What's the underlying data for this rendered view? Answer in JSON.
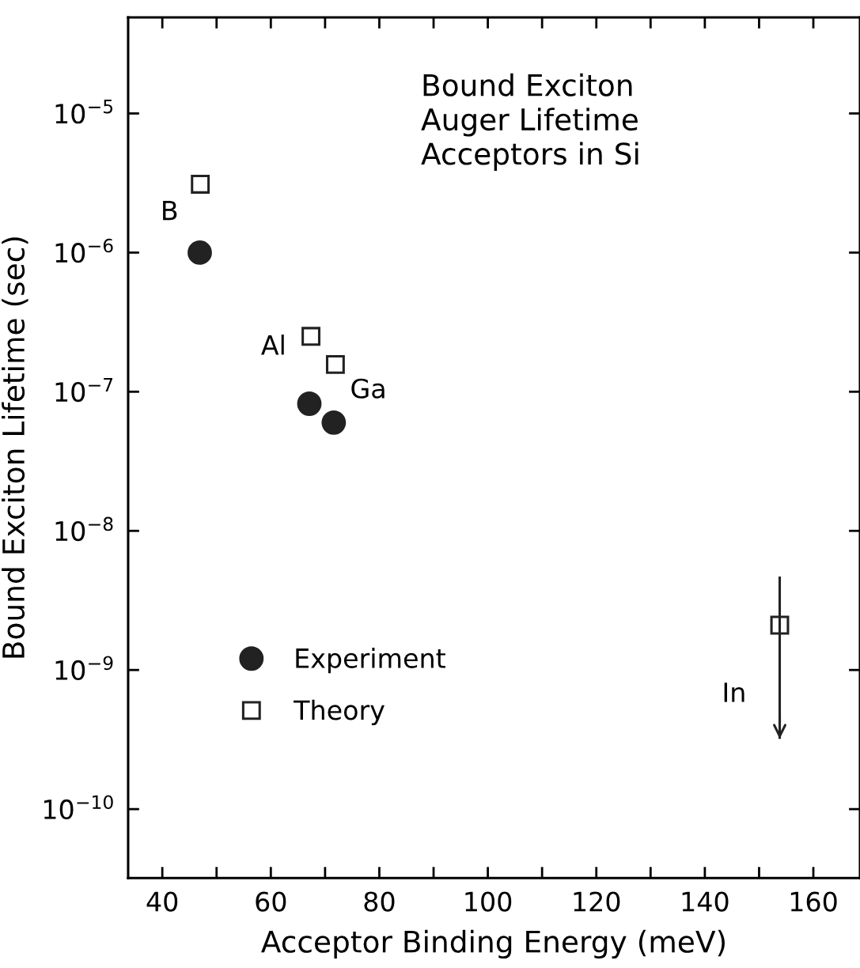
{
  "chart_data": {
    "type": "scatter",
    "title": "Bound Exciton\nAuger Lifetime\nAcceptors in Si",
    "xlabel": "Acceptor Binding Energy (meV)",
    "ylabel": "Bound Exciton Lifetime (sec)",
    "log": "y",
    "xlim": [
      33.7,
      168.6
    ],
    "ylim": [
      3.2e-11,
      4.9e-05
    ],
    "xticks": [
      40,
      {
        "value": 50,
        "label": null
      },
      60,
      {
        "value": 70,
        "label": null
      },
      80,
      {
        "value": 90,
        "label": null
      },
      100,
      {
        "value": 110,
        "label": null
      },
      120,
      {
        "value": 130,
        "label": null
      },
      140,
      {
        "value": 150,
        "label": null
      },
      160
    ],
    "yticks": [
      {
        "value": 1e-10,
        "label": "10$^{−10}$"
      },
      {
        "value": 1e-09,
        "label": "10$^{−9}$"
      },
      {
        "value": 1e-08,
        "label": "10$^{−8}$"
      },
      {
        "value": 1e-07,
        "label": "10$^{−7}$"
      },
      {
        "value": 1e-06,
        "label": "10$^{−6}$"
      },
      {
        "value": 1e-05,
        "label": "10$^{−5}$"
      }
    ],
    "grid": false,
    "legend": "bottom left",
    "series": [
      {
        "name": "Experiment",
        "color": "#222222",
        "marker": "circle",
        "x": [
          46.9,
          67.1,
          71.6
        ],
        "values": [
          1e-06,
          8.2e-08,
          6e-08
        ]
      },
      {
        "name": "Theory",
        "color": "#222222",
        "marker": "square",
        "x": [
          47.0,
          67.4,
          71.9,
          153.8
        ],
        "values": [
          3.1e-06,
          2.5e-07,
          1.57e-07,
          2.1e-09
        ],
        "errors": [
          null,
          null,
          null,
          [
            3.2e-10,
            4.7e-09
          ]
        ]
      }
    ],
    "annotations": [
      {
        "text": "B",
        "x": 47.0,
        "y": 3.1e-06
      },
      {
        "text": "Al",
        "x": 67.4,
        "y": 2.5e-07
      },
      {
        "text": "Ga",
        "x": 71.9,
        "y": 1.57e-07
      },
      "In"
    ]
  }
}
